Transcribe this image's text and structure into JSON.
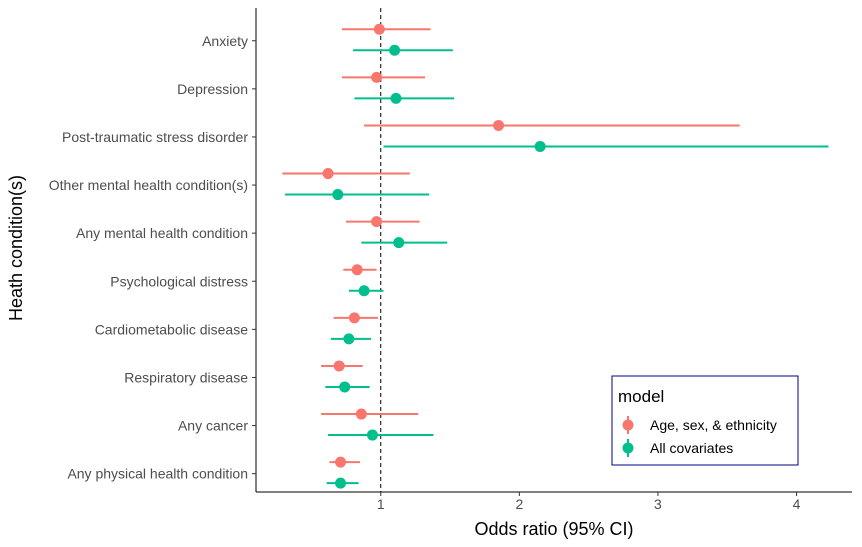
{
  "chart_data": {
    "type": "scatter",
    "subtype": "forest-plot",
    "title": "",
    "xlabel": "Odds ratio (95% CI)",
    "ylabel": "Heath condition(s)",
    "xlim": [
      0.1,
      4.4
    ],
    "x_ticks": [
      1,
      2,
      3,
      4
    ],
    "reference_line": 1,
    "grid": false,
    "legend": {
      "title": "model",
      "position": "bottom-right"
    },
    "categories": [
      "Anxiety",
      "Depression",
      "Post-traumatic stress disorder",
      "Other mental health condition(s)",
      "Any mental health condition",
      "Psychological distress",
      "Cardiometabolic disease",
      "Respiratory disease",
      "Any cancer",
      "Any physical health condition"
    ],
    "series": [
      {
        "name": "Age, sex, & ethnicity",
        "color": "#F8766D",
        "or": [
          0.99,
          0.97,
          1.85,
          0.62,
          0.97,
          0.83,
          0.81,
          0.7,
          0.86,
          0.71
        ],
        "lower": [
          0.72,
          0.72,
          0.88,
          0.29,
          0.75,
          0.73,
          0.66,
          0.57,
          0.57,
          0.63
        ],
        "upper": [
          1.36,
          1.32,
          3.59,
          1.21,
          1.28,
          0.97,
          0.98,
          0.87,
          1.27,
          0.85
        ]
      },
      {
        "name": "All covariates",
        "color": "#00BF8C",
        "or": [
          1.1,
          1.11,
          2.15,
          0.69,
          1.13,
          0.88,
          0.77,
          0.74,
          0.94,
          0.71
        ],
        "lower": [
          0.8,
          0.81,
          1.02,
          0.31,
          0.86,
          0.77,
          0.64,
          0.6,
          0.62,
          0.61
        ],
        "upper": [
          1.52,
          1.53,
          4.23,
          1.35,
          1.48,
          1.02,
          0.93,
          0.92,
          1.38,
          0.84
        ]
      }
    ]
  }
}
